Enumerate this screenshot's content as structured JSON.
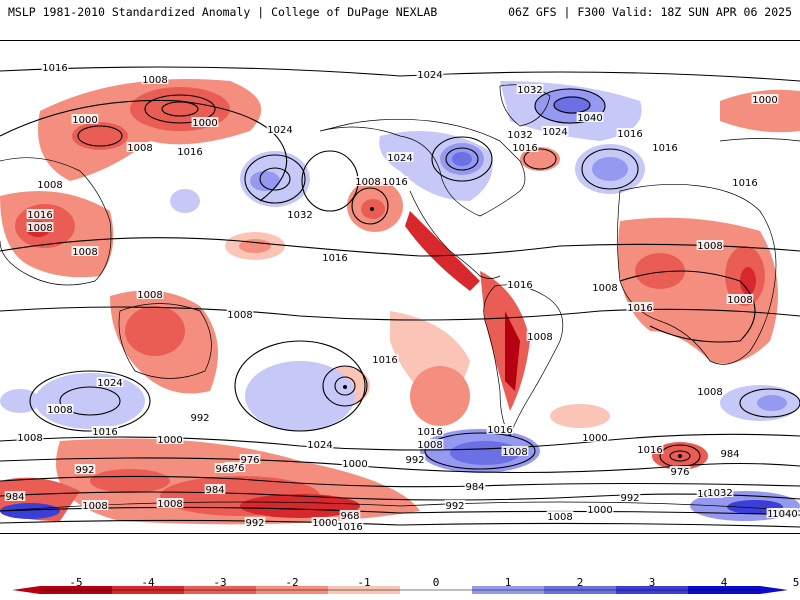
{
  "header": {
    "title_left": "MSLP 1981-2010 Standardized Anomaly | College of DuPage NEXLAB",
    "title_right": "06Z GFS | F300 Valid: 18Z SUN APR 06 2025"
  },
  "colors": {
    "neg_5": "#b50012",
    "neg_4": "#d7282d",
    "neg_3": "#ea5d55",
    "neg_2": "#f48f80",
    "neg_1": "#fac4b6",
    "pos_1": "#c6c9f7",
    "pos_2": "#959af0",
    "pos_3": "#6b70e4",
    "pos_4": "#3b3fd8",
    "pos_5": "#0b0bd0",
    "contour": "#000000",
    "coastline": "#000000"
  },
  "colorbar": {
    "ticks": [
      "-5",
      "-4",
      "-3",
      "-2",
      "-1",
      "0",
      "1",
      "2",
      "3",
      "4",
      "5"
    ]
  },
  "contour_labels": [
    "1016",
    "1008",
    "1000",
    "1000",
    "1008",
    "1016",
    "1024",
    "1024",
    "1032",
    "1040",
    "1024",
    "1032",
    "1024",
    "1016",
    "1016",
    "1008",
    "1032",
    "1016",
    "1008",
    "1016",
    "1008",
    "1016",
    "1008",
    "1016",
    "1000",
    "1016",
    "1008",
    "1008",
    "1016",
    "1016",
    "1008",
    "1008",
    "1008",
    "1008",
    "1024",
    "1016",
    "1008",
    "1024",
    "1016",
    "1008",
    "1016",
    "1008",
    "1016",
    "992",
    "1000",
    "1008",
    "992",
    "1000",
    "992",
    "1008",
    "1016",
    "976",
    "984",
    "976",
    "968",
    "984",
    "1000",
    "1008",
    "992",
    "992",
    "1008",
    "1000",
    "1000",
    "968",
    "1016",
    "1008",
    "992",
    "1040",
    "1032",
    "984",
    "976",
    "1032",
    "1040",
    "984"
  ]
}
